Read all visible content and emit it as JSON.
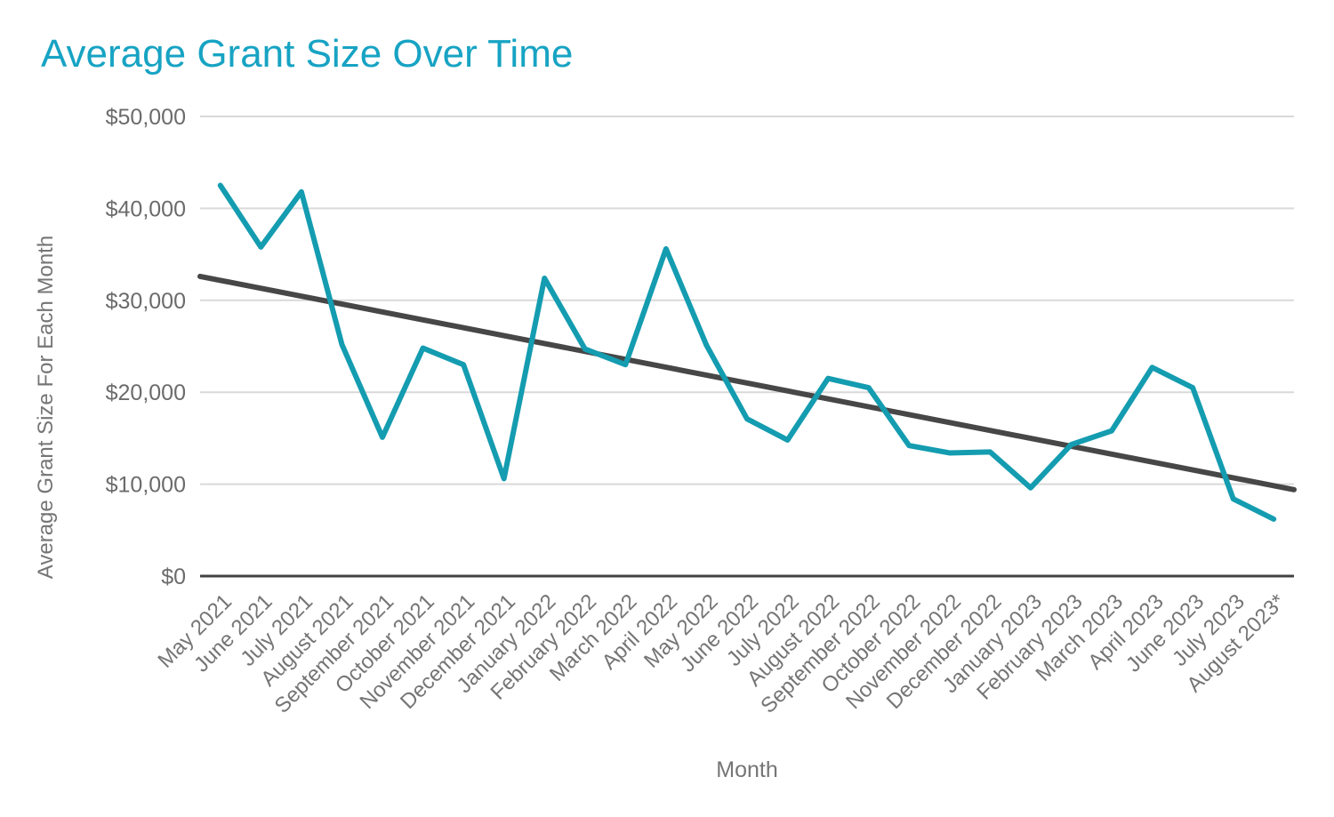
{
  "page": {
    "background_color": "#ffffff"
  },
  "chart_data": {
    "type": "line",
    "title": "Average Grant Size Over Time",
    "xlabel": "Month",
    "ylabel": "Average Grant Size For Each Month",
    "legend": "none",
    "grid": "horizontal",
    "categories": [
      "May 2021",
      "June 2021",
      "July 2021",
      "August 2021",
      "September 2021",
      "October 2021",
      "November 2021",
      "December 2021",
      "January 2022",
      "February 2022",
      "March 2022",
      "April 2022",
      "May 2022",
      "June 2022",
      "July 2022",
      "August 2022",
      "September 2022",
      "October 2022",
      "November 2022",
      "December 2022",
      "January 2023",
      "February 2023",
      "March 2023",
      "April 2023",
      "June 2023",
      "July 2023",
      "August 2023*"
    ],
    "series": [
      {
        "name": "Average Grant Size For Each Month",
        "color": "#149cb0",
        "values": [
          42500,
          35800,
          41800,
          25200,
          15100,
          24800,
          23000,
          10600,
          32400,
          24700,
          23000,
          35600,
          25100,
          17100,
          14800,
          21500,
          20500,
          14200,
          13400,
          13500,
          9600,
          14300,
          15800,
          22700,
          20500,
          8400,
          6200
        ]
      }
    ],
    "trendline": {
      "name": "linear-trend",
      "color": "#474747",
      "start_value": 32600,
      "end_value": 9400
    },
    "y_axis": {
      "min": 0,
      "max": 50000,
      "ticks": [
        {
          "value": 50000,
          "label": "$50,000"
        },
        {
          "value": 40000,
          "label": "$40,000"
        },
        {
          "value": 30000,
          "label": "$30,000"
        },
        {
          "value": 20000,
          "label": "$20,000"
        },
        {
          "value": 10000,
          "label": "$10,000"
        },
        {
          "value": 0,
          "label": "$0"
        }
      ]
    },
    "styles": {
      "title_color": "#17a3c3",
      "tick_label_color": "#6b6b6b",
      "category_label_color": "#757575",
      "axis_title_color": "#757575",
      "gridline_color": "#d9d9d9",
      "baseline_color": "#424242"
    }
  }
}
